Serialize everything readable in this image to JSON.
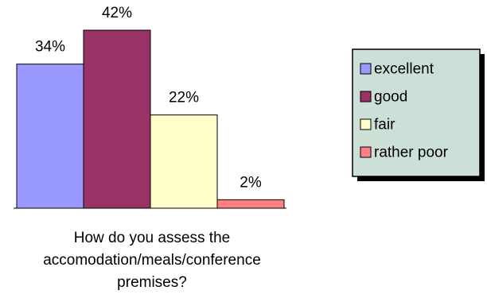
{
  "chart_data": {
    "type": "bar",
    "categories": [
      "excellent",
      "good",
      "fair",
      "rather poor"
    ],
    "values": [
      34,
      42,
      22,
      2
    ],
    "value_labels": [
      "34%",
      "42%",
      "22%",
      "2%"
    ],
    "colors": [
      "#9999ff",
      "#993366",
      "#ffffcc",
      "#ff8080"
    ],
    "ylim": [
      0,
      42
    ],
    "grid": false,
    "legend_position": "right",
    "legend_background": "#cce0d8",
    "caption_lines": [
      "How do you assess the",
      "accomodation/meals/conference",
      "premises?"
    ]
  }
}
